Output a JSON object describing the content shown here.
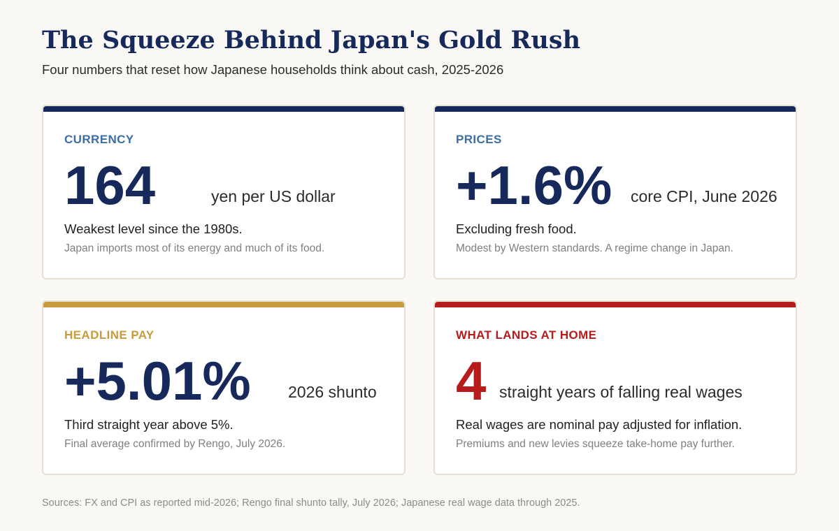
{
  "header": {
    "title": "The Squeeze Behind Japan's Gold Rush",
    "subtitle": "Four numbers that reset how Japanese households think about cash, 2025-2026"
  },
  "colors": {
    "navy": "#16295a",
    "gold": "#c89b3c",
    "red": "#b71c1c",
    "label_blue": "#3a6ea5"
  },
  "cards": [
    {
      "label": "CURRENCY",
      "value": "164",
      "unit": "yen per US dollar",
      "line1": "Weakest level since the 1980s.",
      "line2": "Japan imports most of its energy and much of its food."
    },
    {
      "label": "PRICES",
      "value": "+1.6%",
      "unit": "core CPI, June 2026",
      "line1": "Excluding fresh food.",
      "line2": "Modest by Western standards. A regime change in Japan."
    },
    {
      "label": "HEADLINE PAY",
      "value": "+5.01%",
      "unit": "2026 shunto",
      "line1": "Third straight year above 5%.",
      "line2": "Final average confirmed by Rengo, July 2026."
    },
    {
      "label": "WHAT LANDS AT HOME",
      "value": "4",
      "unit": "straight years of falling real wages",
      "line1": "Real wages are nominal pay adjusted for inflation.",
      "line2": "Premiums and new levies squeeze take-home pay further."
    }
  ],
  "footer": {
    "sources": "Sources: FX and CPI as reported mid-2026; Rengo final shunto tally, July 2026; Japanese real wage data through 2025."
  }
}
